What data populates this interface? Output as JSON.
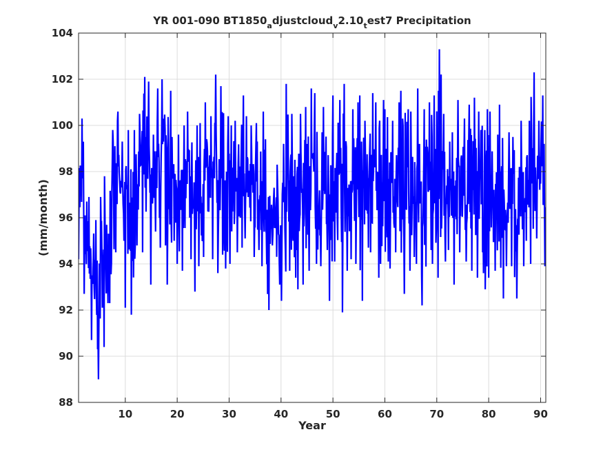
{
  "chart_data": {
    "type": "line",
    "title": {
      "main": "YR 001-090 BT1850",
      "sub1": "a",
      "mid1": "djustcloud",
      "sub2": "v",
      "mid2": "2.10",
      "sub3": "t",
      "tail": "est7 Precipitation"
    },
    "xlabel": "Year",
    "ylabel": "(mm/month)",
    "xlim": [
      1,
      91
    ],
    "ylim": [
      88,
      104
    ],
    "xticks": [
      10,
      20,
      30,
      40,
      50,
      60,
      70,
      80,
      90
    ],
    "yticks": [
      88,
      90,
      92,
      94,
      96,
      98,
      100,
      102,
      104
    ],
    "grid": true,
    "series": [
      {
        "color": "#0000ff",
        "x": [
          1,
          2,
          3,
          4,
          5,
          6,
          7,
          8,
          9,
          10,
          11,
          12,
          13,
          14,
          15,
          16,
          17,
          18,
          19,
          20,
          21,
          22,
          23,
          24,
          25,
          26,
          27,
          28,
          29,
          30,
          31,
          32,
          33,
          34,
          35,
          36,
          37,
          38,
          39,
          40,
          41,
          42,
          43,
          44,
          45,
          46,
          47,
          48,
          49,
          50,
          51,
          52,
          53,
          54,
          55,
          56,
          57,
          58,
          59,
          60,
          61,
          62,
          63,
          64,
          65,
          66,
          67,
          68,
          69,
          70,
          71,
          72,
          73,
          74,
          75,
          76,
          77,
          78,
          79,
          80,
          81,
          82,
          83,
          84,
          85,
          86,
          87,
          88,
          89,
          90,
          91
        ],
        "min": [
          94.2,
          92.7,
          90.7,
          89.0,
          90.4,
          92.3,
          92.3,
          94.5,
          95.0,
          92.1,
          91.8,
          94.8,
          94.5,
          93.1,
          95.4,
          94.7,
          94.8,
          93.1,
          95.0,
          94.0,
          93.7,
          94.2,
          92.8,
          93.9,
          94.3,
          94.2,
          93.6,
          94.4,
          93.8,
          94.0,
          94.5,
          94.7,
          95.1,
          94.3,
          94.6,
          93.9,
          92.0,
          94.8,
          93.1,
          92.4,
          93.7,
          93.4,
          92.9,
          93.1,
          93.7,
          94.0,
          93.9,
          94.6,
          92.4,
          94.1,
          91.9,
          93.7,
          94.2,
          94.0,
          92.4,
          94.7,
          94.5,
          93.4,
          94.0,
          94.1,
          93.8,
          94.5,
          92.7,
          93.7,
          94.3,
          94.0,
          92.2,
          94.6,
          94.0,
          93.4,
          94.1,
          94.6,
          93.1,
          94.5,
          94.1,
          93.7,
          93.4,
          94.5,
          92.9,
          93.4,
          93.7,
          92.5,
          93.9,
          93.9,
          92.5,
          93.9,
          95.0,
          94.0,
          95.1,
          93.9,
          94.6
        ],
        "max": [
          100.3,
          96.7,
          96.9,
          95.9,
          96.9,
          97.8,
          99.8,
          100.6,
          99.3,
          99.8,
          99.8,
          100.5,
          102.1,
          101.9,
          99.6,
          101.6,
          102.0,
          101.5,
          99.5,
          99.6,
          100.0,
          100.6,
          100.0,
          100.1,
          101.0,
          100.4,
          102.2,
          101.7,
          100.4,
          100.0,
          100.2,
          101.3,
          100.4,
          100.0,
          100.1,
          100.6,
          99.4,
          97.3,
          98.3,
          99.2,
          101.8,
          100.5,
          100.5,
          100.8,
          101.6,
          101.4,
          99.7,
          100.8,
          99.5,
          101.3,
          101.1,
          101.8,
          100.7,
          101.0,
          101.3,
          100.2,
          101.4,
          101.0,
          101.1,
          100.7,
          100.2,
          101.0,
          101.5,
          100.7,
          100.6,
          101.6,
          100.7,
          101.0,
          101.3,
          103.3,
          100.5,
          99.3,
          99.7,
          101.1,
          100.3,
          100.9,
          101.2,
          100.6,
          100.7,
          100.6,
          99.6,
          100.9,
          99.7,
          99.5,
          98.2,
          100.2,
          100.2,
          102.3,
          100.2,
          101.3,
          100.1
        ]
      }
    ]
  },
  "colors": {
    "series": "#0000ff",
    "axis": "#262626",
    "grid": "#dcdcdc"
  }
}
